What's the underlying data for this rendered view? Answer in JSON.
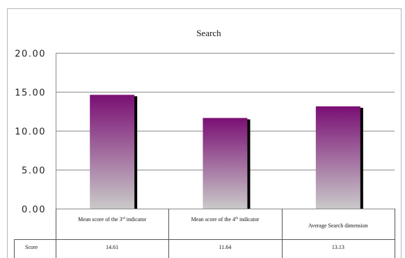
{
  "chart_data": {
    "type": "bar",
    "title": "Search",
    "categories": [
      {
        "label": "Mean score of the 3",
        "sup": "rd",
        "tail": " indicator"
      },
      {
        "label": "Mean score of the 4",
        "sup": "th",
        "tail": " indicator"
      },
      {
        "label": "Average Search dimension",
        "sup": "",
        "tail": ""
      }
    ],
    "series": [
      {
        "name": "Score",
        "values": [
          14.61,
          11.64,
          13.13
        ]
      }
    ],
    "y_ticks": [
      "0.00",
      "5.00",
      "10.00",
      "15.00",
      "20.00"
    ],
    "ylim": [
      0,
      20
    ],
    "grid": true,
    "data_table": {
      "row_label": "Score",
      "cells": [
        "14.61",
        "11.64",
        "13.13"
      ]
    },
    "bar_gradient": {
      "top": "#7a0f74",
      "bottom": "#c9c9c9"
    },
    "colors": {
      "shadow": "#000000",
      "grid": "#8a8a8a",
      "border": "#b5b5b5"
    }
  }
}
